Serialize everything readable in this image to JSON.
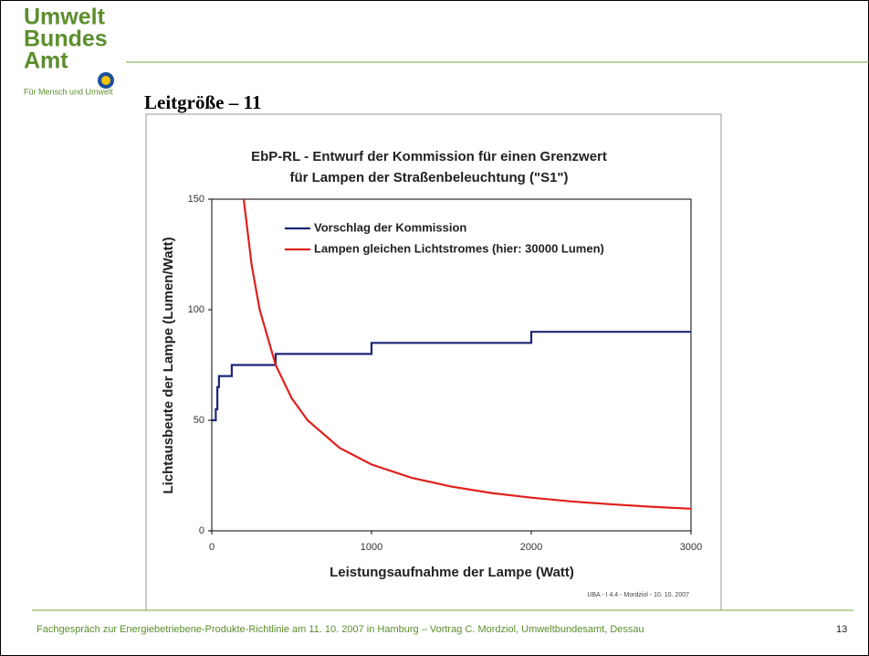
{
  "header": {
    "logo_lines": [
      "Umwelt",
      "Bundes",
      "Amt"
    ],
    "logo_tagline": "Für Mensch und Umwelt",
    "title": "Leitgröße – 11"
  },
  "chart_data": {
    "type": "line",
    "title": [
      "EbP-RL - Entwurf der Kommission für einen Grenzwert",
      "für Lampen der Straßenbeleuchtung (\"S1\")"
    ],
    "x_label": "Leistungsaufnahme der Lampe (Watt)",
    "y_label": "Lichtausbeute der Lampe (Lumen/Watt)",
    "xlim": [
      0,
      3000
    ],
    "xticks": [
      0,
      1000,
      2000,
      3000
    ],
    "ylim": [
      0,
      150
    ],
    "yticks": [
      0,
      50,
      100,
      150
    ],
    "legend": "top-left",
    "series": [
      {
        "name": "Vorschlag der Kommission",
        "color": "#1c2677",
        "x": [
          0,
          25,
          25,
          35,
          35,
          45,
          45,
          125,
          125,
          400,
          400,
          1000,
          1000,
          2000,
          2000,
          3000
        ],
        "values": [
          50,
          50,
          55,
          55,
          65,
          65,
          70,
          70,
          75,
          75,
          80,
          80,
          85,
          85,
          90,
          90
        ]
      },
      {
        "name": "Lampen gleichen Lichtstromes (hier: 30000 Lumen)",
        "color": "#e0201b",
        "x": [
          200,
          250,
          300,
          400,
          500,
          600,
          800,
          1000,
          1250,
          1500,
          1750,
          2000,
          2250,
          2500,
          2750,
          3000
        ],
        "values": [
          150,
          120,
          100,
          75,
          60,
          50,
          37.5,
          30,
          24,
          20,
          17.1,
          15,
          13.3,
          12,
          10.9,
          10
        ]
      }
    ],
    "credit": "UBA - I 4.4 - Mordziol - 10. 10. 2007"
  },
  "footer": {
    "text": "Fachgespräch zur Energiebetriebene-Produkte-Richtlinie am 11. 10. 2007 in Hamburg – Vortrag C. Mordziol, Umweltbundesamt, Dessau",
    "page": "13"
  }
}
